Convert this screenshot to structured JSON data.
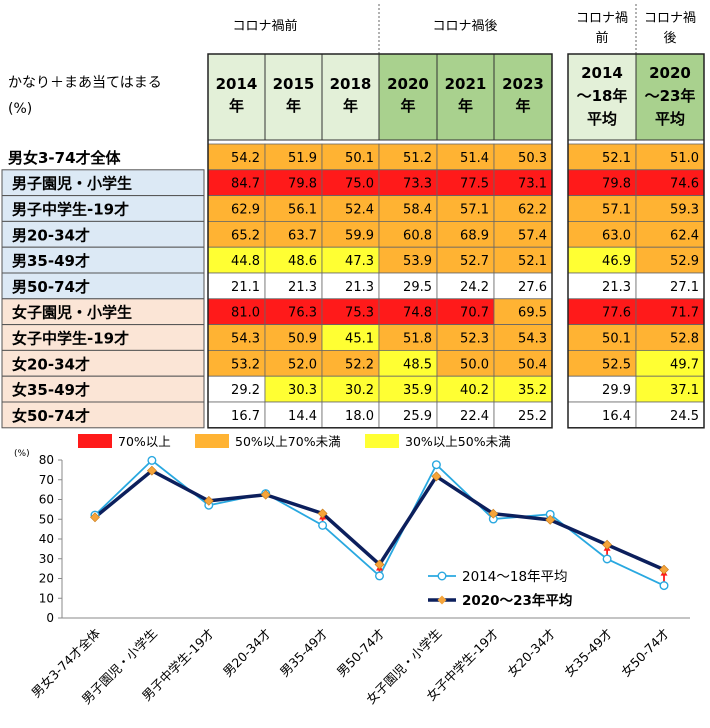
{
  "colors": {
    "red": "#ff1a1a",
    "orange": "#ffb333",
    "yellow": "#ffff33",
    "white": "#ffffff",
    "header_light": "#e3f0d8",
    "header_dark": "#a9d18e",
    "row_male": "#dce9f5",
    "row_female": "#fbe5d6",
    "line_2014": "#29a8e0",
    "line_2020": "#0c1f5c",
    "marker_2020": "#f5a43a",
    "arrow": "#ff1a1a"
  },
  "table": {
    "ylabel_line1": "かなり＋まあ当てはまる",
    "ylabel_line2": "(%)",
    "group_before": "コロナ禍前",
    "group_after": "コロナ禍後",
    "group_avg_before": [
      "コロナ禍",
      "前"
    ],
    "group_avg_after": [
      "コロナ禍",
      "後"
    ],
    "year_headers": [
      [
        "2014",
        "年"
      ],
      [
        "2015",
        "年"
      ],
      [
        "2018",
        "年"
      ],
      [
        "2020",
        "年"
      ],
      [
        "2021",
        "年"
      ],
      [
        "2023",
        "年"
      ]
    ],
    "avg_headers": [
      [
        "2014",
        "～18年",
        "平均"
      ],
      [
        "2020",
        "～23年",
        "平均"
      ]
    ],
    "rows": [
      {
        "label": "男女3-74才全体",
        "group": "all",
        "values": [
          "54.2",
          "51.9",
          "50.1",
          "51.2",
          "51.4",
          "50.3"
        ],
        "avg": [
          "52.1",
          "51.0"
        ]
      },
      {
        "label": "男子園児・小学生",
        "group": "male",
        "values": [
          "84.7",
          "79.8",
          "75.0",
          "73.3",
          "77.5",
          "73.1"
        ],
        "avg": [
          "79.8",
          "74.6"
        ]
      },
      {
        "label": "男子中学生-19才",
        "group": "male",
        "values": [
          "62.9",
          "56.1",
          "52.4",
          "58.4",
          "57.1",
          "62.2"
        ],
        "avg": [
          "57.1",
          "59.3"
        ]
      },
      {
        "label": "男20-34才",
        "group": "male",
        "values": [
          "65.2",
          "63.7",
          "59.9",
          "60.8",
          "68.9",
          "57.4"
        ],
        "avg": [
          "63.0",
          "62.4"
        ]
      },
      {
        "label": "男35-49才",
        "group": "male",
        "values": [
          "44.8",
          "48.6",
          "47.3",
          "53.9",
          "52.7",
          "52.1"
        ],
        "avg": [
          "46.9",
          "52.9"
        ]
      },
      {
        "label": "男50-74才",
        "group": "male",
        "values": [
          "21.1",
          "21.3",
          "21.3",
          "29.5",
          "24.2",
          "27.6"
        ],
        "avg": [
          "21.3",
          "27.1"
        ]
      },
      {
        "label": "女子園児・小学生",
        "group": "female",
        "values": [
          "81.0",
          "76.3",
          "75.3",
          "74.8",
          "70.7",
          "69.5"
        ],
        "avg": [
          "77.6",
          "71.7"
        ]
      },
      {
        "label": "女子中学生-19才",
        "group": "female",
        "values": [
          "54.3",
          "50.9",
          "45.1",
          "51.8",
          "52.3",
          "54.3"
        ],
        "avg": [
          "50.1",
          "52.8"
        ]
      },
      {
        "label": "女20-34才",
        "group": "female",
        "values": [
          "53.2",
          "52.0",
          "52.2",
          "48.5",
          "50.0",
          "50.4"
        ],
        "avg": [
          "52.5",
          "49.7"
        ]
      },
      {
        "label": "女35-49才",
        "group": "female",
        "values": [
          "29.2",
          "30.3",
          "30.2",
          "35.9",
          "40.2",
          "35.2"
        ],
        "avg": [
          "29.9",
          "37.1"
        ]
      },
      {
        "label": "女50-74才",
        "group": "female",
        "values": [
          "16.7",
          "14.4",
          "18.0",
          "25.9",
          "22.4",
          "25.2"
        ],
        "avg": [
          "16.4",
          "24.5"
        ]
      }
    ]
  },
  "legend": {
    "items": [
      {
        "label": "70%以上",
        "color": "#ff1a1a"
      },
      {
        "label": "50%以上70%未満",
        "color": "#ffb333"
      },
      {
        "label": "30%以上50%未満",
        "color": "#ffff33"
      }
    ]
  },
  "chart_data": {
    "type": "line",
    "ylabel": "(%)",
    "ylim": [
      0,
      80
    ],
    "yticks": [
      0,
      10,
      20,
      30,
      40,
      50,
      60,
      70,
      80
    ],
    "grid": false,
    "legend_position": "bottom-right",
    "categories": [
      "男女3-74才全体",
      "男子園児・小学生",
      "男子中学生-19才",
      "男20-34才",
      "男35-49才",
      "男50-74才",
      "女子園児・小学生",
      "女子中学生-19才",
      "女20-34才",
      "女35-49才",
      "女50-74才"
    ],
    "series": [
      {
        "name": "2014～18年平均",
        "values": [
          52.1,
          79.8,
          57.1,
          63.0,
          46.9,
          21.3,
          77.6,
          50.1,
          52.5,
          29.9,
          16.4
        ]
      },
      {
        "name": "2020～23年平均",
        "values": [
          51.0,
          74.6,
          59.3,
          62.4,
          52.9,
          27.1,
          71.7,
          52.8,
          49.7,
          37.1,
          24.5
        ]
      }
    ]
  }
}
